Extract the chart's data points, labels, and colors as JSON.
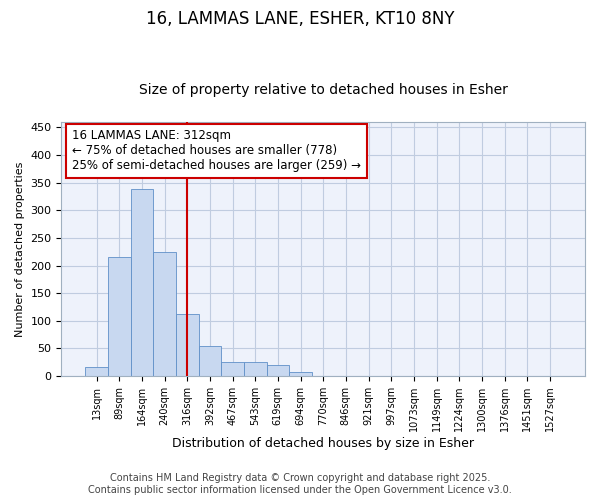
{
  "title": "16, LAMMAS LANE, ESHER, KT10 8NY",
  "subtitle": "Size of property relative to detached houses in Esher",
  "xlabel": "Distribution of detached houses by size in Esher",
  "ylabel": "Number of detached properties",
  "bar_labels": [
    "13sqm",
    "89sqm",
    "164sqm",
    "240sqm",
    "316sqm",
    "392sqm",
    "467sqm",
    "543sqm",
    "619sqm",
    "694sqm",
    "770sqm",
    "846sqm",
    "921sqm",
    "997sqm",
    "1073sqm",
    "1149sqm",
    "1224sqm",
    "1300sqm",
    "1376sqm",
    "1451sqm",
    "1527sqm"
  ],
  "bar_values": [
    16,
    216,
    338,
    224,
    113,
    55,
    26,
    26,
    20,
    7,
    1,
    0,
    0,
    0,
    0,
    0,
    0,
    0,
    0,
    0,
    0
  ],
  "bar_color": "#c8d8f0",
  "bar_edge_color": "#6090c8",
  "property_line_index": 4,
  "property_line_color": "#cc0000",
  "ylim": [
    0,
    460
  ],
  "yticks": [
    0,
    50,
    100,
    150,
    200,
    250,
    300,
    350,
    400,
    450
  ],
  "annotation_text": "16 LAMMAS LANE: 312sqm\n← 75% of detached houses are smaller (778)\n25% of semi-detached houses are larger (259) →",
  "footer_line1": "Contains HM Land Registry data © Crown copyright and database right 2025.",
  "footer_line2": "Contains public sector information licensed under the Open Government Licence v3.0.",
  "background_color": "#ffffff",
  "plot_bg_color": "#eef2fb",
  "grid_color": "#c0cce0",
  "title_fontsize": 12,
  "subtitle_fontsize": 10,
  "annotation_fontsize": 8.5,
  "footer_fontsize": 7
}
